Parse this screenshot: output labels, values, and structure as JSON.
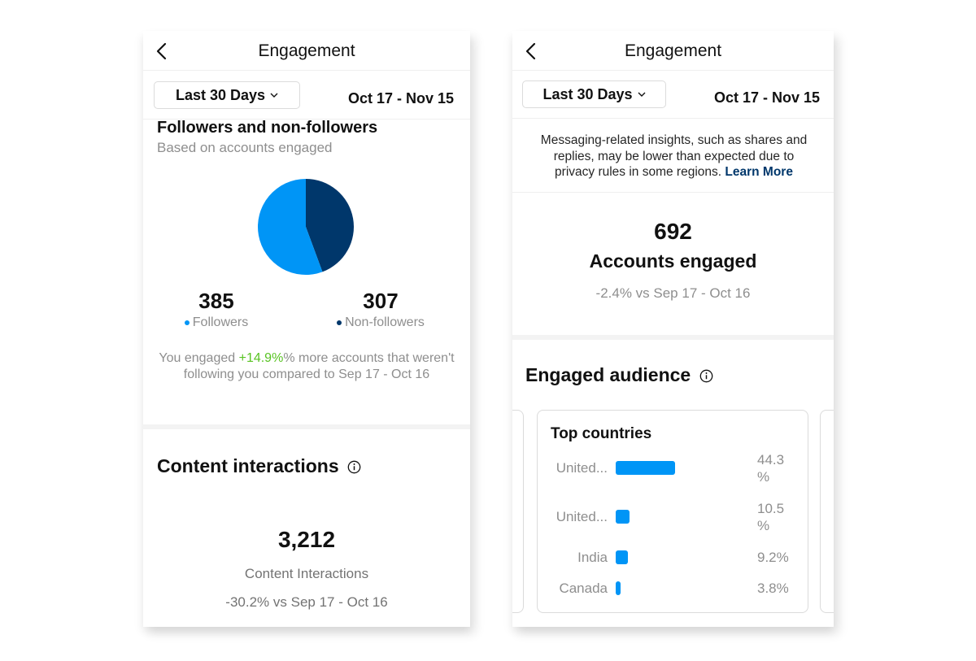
{
  "left": {
    "title": "Engagement",
    "range_label": "Last 30 Days",
    "date_range": "Oct 17 - Nov 15",
    "followers_section": {
      "title": "Followers and non-followers",
      "subtitle": "Based on accounts engaged",
      "followers_value": "385",
      "followers_label": "Followers",
      "nonfollowers_value": "307",
      "nonfollowers_label": "Non-followers",
      "note_pre": "You engaged ",
      "note_pct": "+14.9%",
      "note_post": "% more accounts that weren't following you compared to Sep 17 - Oct 16"
    },
    "content_section": {
      "title": "Content interactions",
      "value": "3,212",
      "label": "Content Interactions",
      "change": "-30.2% vs Sep 17 - Oct 16"
    }
  },
  "right": {
    "title": "Engagement",
    "range_label": "Last 30 Days",
    "date_range": "Oct 17 - Nov 15",
    "notice_text": "Messaging-related insights, such as shares and replies, may be lower than expected due to privacy rules in some regions.",
    "notice_link": "Learn More",
    "accounts_value": "692",
    "accounts_label": "Accounts engaged",
    "accounts_change": "-2.4% vs Sep 17 - Oct 16",
    "audience_title": "Engaged audience",
    "countries_title": "Top countries",
    "countries": [
      {
        "name": "United...",
        "pct_line1": "44.3",
        "pct_line2": "%",
        "share": 44.3
      },
      {
        "name": "United...",
        "pct_line1": "10.5",
        "pct_line2": "%",
        "share": 10.5
      },
      {
        "name": "India",
        "pct_line1": "9.2%",
        "pct_line2": "",
        "share": 9.2
      },
      {
        "name": "Canada",
        "pct_line1": "3.8%",
        "pct_line2": "",
        "share": 3.8
      }
    ]
  },
  "chart_data": {
    "type": "pie",
    "categories": [
      "Followers",
      "Non-followers"
    ],
    "values": [
      385,
      307
    ],
    "colors": [
      "#0095f6",
      "#00376b"
    ],
    "title": "Followers and non-followers"
  },
  "colors": {
    "followers": "#0095f6",
    "nonfollowers": "#00376b",
    "positive": "#58c322",
    "link": "#00376b",
    "bar": "#0095f6"
  }
}
